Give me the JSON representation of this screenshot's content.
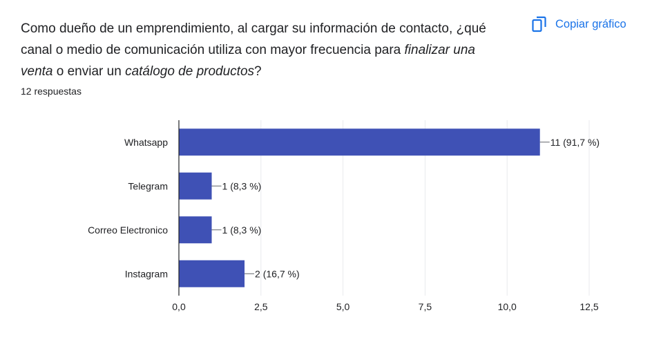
{
  "question": {
    "part1": "Como dueño de un emprendimiento, al cargar su información de contacto, ¿qué canal o medio de comunicación utiliza con mayor frecuencia para ",
    "emph1": "finalizar una venta",
    "part2": " o enviar un ",
    "emph2": "catálogo de productos",
    "part3": "?"
  },
  "responses_label": "12 respuestas",
  "copy_button": {
    "label": "Copiar gráfico",
    "icon": "copy-icon"
  },
  "colors": {
    "bar": "#3f51b5",
    "accent": "#1a73e8",
    "grid": "#e8eaed",
    "axis": "#202124"
  },
  "chart_data": {
    "type": "bar",
    "orientation": "horizontal",
    "categories": [
      "Whatsapp",
      "Telegram",
      "Correo Electronico",
      "Instagram"
    ],
    "values": [
      11,
      1,
      1,
      2
    ],
    "data_labels": [
      "11 (91,7 %)",
      "1 (8,3 %)",
      "1 (8,3 %)",
      "2 (16,7 %)"
    ],
    "xlim": [
      0,
      12.5
    ],
    "xticks": [
      0,
      2.5,
      5,
      7.5,
      10,
      12.5
    ],
    "xtick_labels": [
      "0,0",
      "2,5",
      "5,0",
      "7,5",
      "10,0",
      "12,5"
    ],
    "grid": true,
    "legend": "none"
  }
}
